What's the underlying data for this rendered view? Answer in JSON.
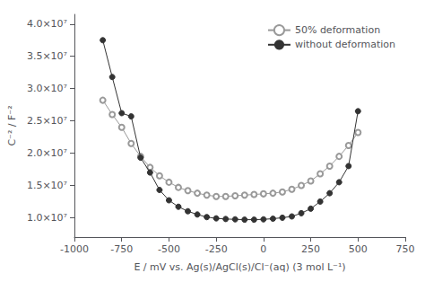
{
  "chart_data": {
    "type": "line",
    "xlabel": "E / mV vs. Ag(s)/AgCl(s)/Cl⁻(aq) (3 mol L⁻¹)",
    "ylabel": "C⁻² / F⁻²",
    "xlim": [
      -1000,
      750
    ],
    "ylim": [
      7000000.0,
      41500000.0
    ],
    "xticks": [
      -1000,
      -750,
      -500,
      -250,
      0,
      250,
      500,
      750
    ],
    "yticks": [
      {
        "value": 10000000.0,
        "label": "1.0×10⁷"
      },
      {
        "value": 15000000.0,
        "label": "1.5×10⁷"
      },
      {
        "value": 20000000.0,
        "label": "2.0×10⁷"
      },
      {
        "value": 25000000.0,
        "label": "2.5×10⁷"
      },
      {
        "value": 30000000.0,
        "label": "3.0×10⁷"
      },
      {
        "value": 35000000.0,
        "label": "3.5×10⁷"
      },
      {
        "value": 40000000.0,
        "label": "4.0×10⁷"
      }
    ],
    "grid": false,
    "legend": "upper right",
    "x": [
      -850,
      -800,
      -750,
      -700,
      -650,
      -600,
      -550,
      -500,
      -450,
      -400,
      -350,
      -300,
      -250,
      -200,
      -150,
      -100,
      -50,
      0,
      50,
      100,
      150,
      200,
      250,
      300,
      350,
      400,
      450,
      500
    ],
    "series": [
      {
        "name": "50% deformation",
        "color": "#999999",
        "marker": "open_circle",
        "values": [
          28200000.0,
          26000000.0,
          24000000.0,
          21500000.0,
          19500000.0,
          17800000.0,
          16500000.0,
          15500000.0,
          14700000.0,
          14200000.0,
          13800000.0,
          13500000.0,
          13300000.0,
          13300000.0,
          13400000.0,
          13500000.0,
          13600000.0,
          13700000.0,
          13800000.0,
          14000000.0,
          14400000.0,
          15000000.0,
          15700000.0,
          16800000.0,
          18000000.0,
          19500000.0,
          21200000.0,
          23200000.0
        ]
      },
      {
        "name": "without deformation",
        "color": "#333333",
        "marker": "circle",
        "values": [
          37500000.0,
          31800000.0,
          26200000.0,
          25700000.0,
          19300000.0,
          17000000.0,
          14300000.0,
          12700000.0,
          11700000.0,
          11000000.0,
          10500000.0,
          10100000.0,
          9900000.0,
          9800000.0,
          9750000.0,
          9700000.0,
          9700000.0,
          9750000.0,
          9850000.0,
          10000000.0,
          10200000.0,
          10700000.0,
          11400000.0,
          12500000.0,
          13800000.0,
          15500000.0,
          18000000.0,
          26500000.0
        ]
      }
    ]
  }
}
